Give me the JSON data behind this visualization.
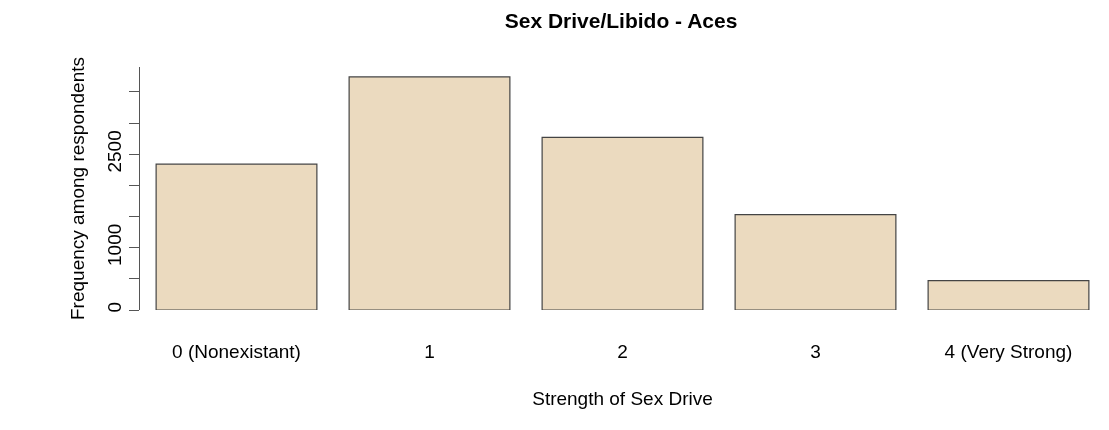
{
  "chart_data": {
    "type": "bar",
    "title": "Sex Drive/Libido - Aces",
    "xlabel": "Strength of Sex Drive",
    "ylabel": "Frequency among respondents",
    "categories": [
      "0 (Nonexistant)",
      "1",
      "2",
      "3",
      "4 (Very Strong)"
    ],
    "values": [
      2340,
      3740,
      2770,
      1530,
      470
    ],
    "color": "#ebdabf",
    "ylim": [
      0,
      3900
    ],
    "yticks": [
      0,
      {
        "value": 500,
        "label": null
      },
      1000,
      {
        "value": 1500,
        "label": null
      },
      {
        "value": 2000,
        "label": null
      },
      2500,
      {
        "value": 3000,
        "label": null
      },
      {
        "value": 3500,
        "label": null
      }
    ],
    "grid": false
  }
}
